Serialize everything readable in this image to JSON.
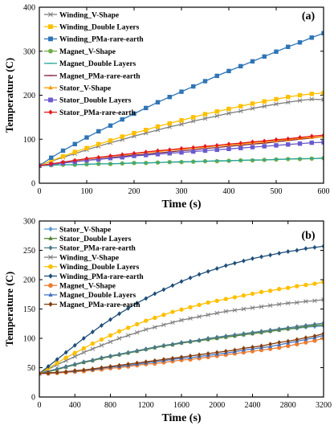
{
  "chart_data": [
    {
      "type": "line",
      "panel_label": "(a)",
      "xlabel": "Time (s)",
      "ylabel": "Temperature (C)",
      "xlim": [
        0,
        600
      ],
      "ylim": [
        0,
        400
      ],
      "xticks": [
        0,
        100,
        200,
        300,
        400,
        500,
        600
      ],
      "yticks": [
        0,
        100,
        200,
        300,
        400
      ],
      "legend_position": "top-left",
      "x": [
        0,
        25,
        50,
        75,
        100,
        125,
        150,
        175,
        200,
        225,
        250,
        275,
        300,
        325,
        350,
        375,
        400,
        425,
        450,
        475,
        500,
        525,
        550,
        575,
        600
      ],
      "series": [
        {
          "name": "Winding_V-Shape",
          "color": "#7f7f7f",
          "marker": "x",
          "values": [
            40,
            50,
            59,
            67,
            76,
            84,
            92,
            99,
            107,
            114,
            121,
            128,
            134,
            141,
            147,
            153,
            159,
            164,
            170,
            175,
            180,
            184,
            188,
            191,
            190
          ]
        },
        {
          "name": "Winding_Double Layers",
          "color": "#ffc000",
          "marker": "square",
          "values": [
            40,
            51,
            61,
            71,
            80,
            89,
            97,
            106,
            114,
            121,
            129,
            136,
            143,
            150,
            157,
            163,
            169,
            175,
            181,
            186,
            191,
            196,
            200,
            203,
            205
          ]
        },
        {
          "name": "Winding_PMa-rare-earth",
          "color": "#2e75b6",
          "marker": "square",
          "values": [
            40,
            58,
            74,
            89,
            104,
            118,
            131,
            145,
            158,
            171,
            184,
            196,
            208,
            220,
            232,
            244,
            255,
            266,
            277,
            288,
            299,
            310,
            320,
            331,
            341
          ]
        },
        {
          "name": "Magnet_V-Shape",
          "color": "#70ad47",
          "marker": "circle",
          "values": [
            40,
            41,
            42,
            42,
            43,
            44,
            44,
            45,
            46,
            46,
            47,
            48,
            48,
            49,
            50,
            50,
            51,
            52,
            52,
            53,
            54,
            55,
            55,
            56,
            57
          ]
        },
        {
          "name": "Magnet_Double Layers",
          "color": "#26a69a",
          "marker": "dash",
          "values": [
            40,
            41,
            42,
            42,
            43,
            44,
            44,
            45,
            46,
            46,
            47,
            48,
            49,
            49,
            50,
            51,
            51,
            52,
            53,
            53,
            54,
            55,
            56,
            56,
            57
          ]
        },
        {
          "name": "Magnet_PMa-rare-earth",
          "color": "#7f1d3a",
          "marker": "dash",
          "values": [
            40,
            43,
            46,
            49,
            52,
            55,
            58,
            61,
            64,
            66,
            69,
            71,
            74,
            76,
            79,
            81,
            84,
            86,
            89,
            91,
            94,
            97,
            100,
            103,
            106
          ]
        },
        {
          "name": "Stator_V-Shape",
          "color": "#ff9900",
          "marker": "triangle",
          "values": [
            40,
            44,
            48,
            51,
            55,
            58,
            61,
            64,
            67,
            70,
            72,
            75,
            77,
            80,
            82,
            85,
            87,
            89,
            92,
            94,
            97,
            99,
            102,
            104,
            106
          ]
        },
        {
          "name": "Stator_Double Layers",
          "color": "#6a5acd",
          "marker": "square",
          "values": [
            40,
            43,
            46,
            49,
            52,
            54,
            57,
            59,
            62,
            64,
            66,
            68,
            70,
            72,
            74,
            76,
            78,
            80,
            82,
            84,
            86,
            88,
            90,
            92,
            93
          ]
        },
        {
          "name": "Stator_PMa-rare-earth",
          "color": "#e31a1c",
          "marker": "diamond",
          "values": [
            40,
            44,
            48,
            52,
            56,
            59,
            62,
            65,
            68,
            71,
            74,
            76,
            79,
            81,
            84,
            86,
            89,
            91,
            94,
            96,
            99,
            101,
            104,
            107,
            109
          ]
        }
      ]
    },
    {
      "type": "line",
      "panel_label": "(b)",
      "xlabel": "Time (s)",
      "ylabel": "Temperature (C)",
      "xlim": [
        0,
        3200
      ],
      "ylim": [
        0,
        300
      ],
      "xticks": [
        0,
        400,
        800,
        1200,
        1600,
        2000,
        2400,
        2800,
        3200
      ],
      "yticks": [
        0,
        50,
        100,
        150,
        200,
        250,
        300
      ],
      "legend_position": "top-left",
      "x": [
        0,
        100,
        200,
        300,
        400,
        500,
        600,
        700,
        800,
        900,
        1000,
        1100,
        1200,
        1300,
        1400,
        1500,
        1600,
        1700,
        1800,
        1900,
        2000,
        2100,
        2200,
        2300,
        2400,
        2500,
        2600,
        2700,
        2800,
        2900,
        3000,
        3100,
        3200
      ],
      "series": [
        {
          "name": "Stator_V-Shape",
          "color": "#5b9bd5",
          "marker": "diamond",
          "values": [
            40,
            43,
            47,
            51,
            55,
            59,
            62,
            66,
            69,
            72,
            75,
            78,
            81,
            84,
            87,
            89,
            92,
            94,
            96,
            98,
            100,
            102,
            104,
            106,
            108,
            110,
            112,
            114,
            116,
            117,
            119,
            120,
            121
          ]
        },
        {
          "name": "Stator_Double Layers",
          "color": "#548235",
          "marker": "triangle",
          "values": [
            40,
            43,
            47,
            51,
            55,
            59,
            62,
            66,
            69,
            72,
            75,
            78,
            81,
            84,
            87,
            89,
            92,
            94,
            96,
            98,
            100,
            102,
            104,
            106,
            108,
            110,
            112,
            114,
            116,
            118,
            120,
            122,
            123
          ]
        },
        {
          "name": "Stator_PMa-rare-earth",
          "color": "#4a7a8c",
          "marker": "diamond",
          "values": [
            40,
            44,
            48,
            52,
            56,
            60,
            63,
            67,
            70,
            73,
            76,
            79,
            82,
            85,
            88,
            90,
            93,
            95,
            97,
            100,
            102,
            104,
            106,
            108,
            110,
            112,
            114,
            116,
            118,
            120,
            122,
            124,
            126
          ]
        },
        {
          "name": "Winding_V-Shape",
          "color": "#7f7f7f",
          "marker": "x",
          "values": [
            40,
            47,
            55,
            62,
            69,
            76,
            82,
            88,
            94,
            100,
            105,
            110,
            115,
            119,
            123,
            127,
            131,
            134,
            137,
            140,
            143,
            146,
            148,
            150,
            152,
            154,
            156,
            158,
            160,
            161,
            163,
            164,
            166
          ]
        },
        {
          "name": "Winding_Double Layers",
          "color": "#ffc000",
          "marker": "circle",
          "values": [
            40,
            49,
            58,
            67,
            75,
            83,
            91,
            98,
            105,
            112,
            118,
            124,
            130,
            135,
            140,
            145,
            149,
            153,
            157,
            161,
            164,
            167,
            170,
            173,
            176,
            179,
            181,
            184,
            186,
            189,
            191,
            193,
            196
          ]
        },
        {
          "name": "Winding_PMa-rare-earth",
          "color": "#1f4e79",
          "marker": "diamond",
          "values": [
            40,
            52,
            64,
            76,
            88,
            100,
            111,
            122,
            132,
            142,
            151,
            160,
            168,
            176,
            183,
            190,
            197,
            203,
            209,
            214,
            219,
            224,
            228,
            232,
            236,
            239,
            242,
            245,
            248,
            250,
            253,
            255,
            257
          ]
        },
        {
          "name": "Magnet_V-Shape",
          "color": "#ed7d31",
          "marker": "circle",
          "values": [
            40,
            40,
            41,
            42,
            43,
            44,
            46,
            47,
            49,
            50,
            52,
            54,
            56,
            57,
            59,
            61,
            63,
            64,
            66,
            68,
            70,
            72,
            74,
            76,
            78,
            80,
            82,
            84,
            87,
            90,
            93,
            96,
            100
          ]
        },
        {
          "name": "Magnet_Double Layers",
          "color": "#4472c4",
          "marker": "triangle",
          "values": [
            40,
            41,
            42,
            43,
            44,
            46,
            47,
            49,
            51,
            52,
            54,
            56,
            58,
            60,
            62,
            64,
            66,
            67,
            69,
            71,
            73,
            75,
            77,
            80,
            82,
            84,
            86,
            89,
            92,
            95,
            98,
            101,
            105
          ]
        },
        {
          "name": "Magnet_PMa-rare-earth",
          "color": "#843c0c",
          "marker": "diamond",
          "values": [
            40,
            41,
            42,
            43,
            45,
            46,
            48,
            50,
            52,
            54,
            56,
            58,
            60,
            62,
            64,
            66,
            68,
            70,
            72,
            74,
            76,
            78,
            80,
            83,
            85,
            87,
            90,
            93,
            95,
            98,
            101,
            104,
            108
          ]
        }
      ]
    }
  ]
}
